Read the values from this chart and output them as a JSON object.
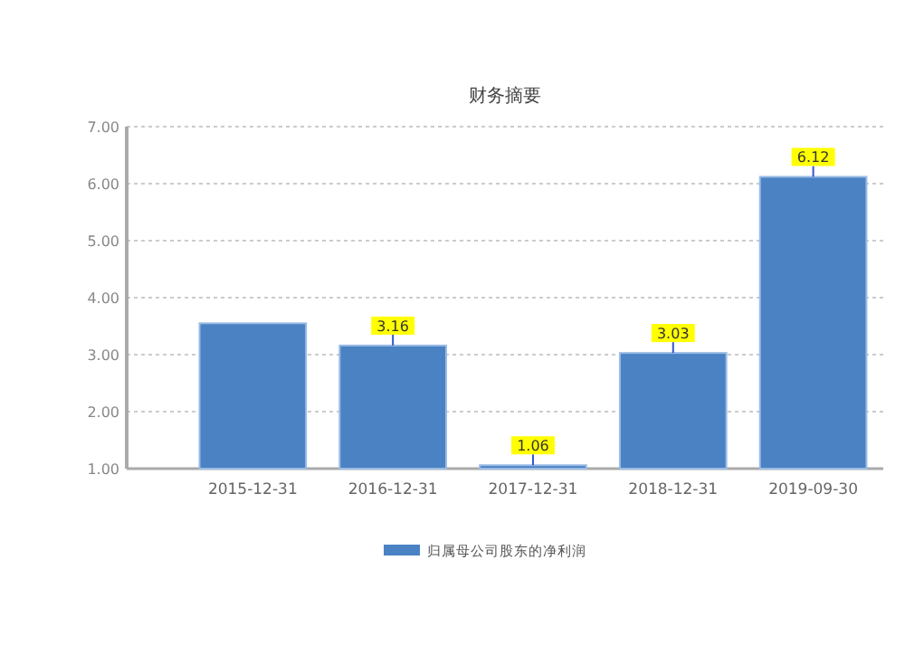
{
  "chart_data": {
    "type": "bar",
    "title": "财务摘要",
    "categories": [
      "2015-12-31",
      "2016-12-31",
      "2017-12-31",
      "2018-12-31",
      "2019-09-30"
    ],
    "series": [
      {
        "name": "归属母公司股东的净利润",
        "color": "#4a82c3",
        "values": [
          3.55,
          3.16,
          1.06,
          3.03,
          6.12
        ],
        "value_labels": [
          null,
          "3.16",
          "1.06",
          "3.03",
          "6.12"
        ]
      }
    ],
    "ylim": [
      1,
      7
    ],
    "yticks": [
      {
        "value": 1,
        "label": "1.00"
      },
      {
        "value": 2,
        "label": "2.00"
      },
      {
        "value": 3,
        "label": "3.00"
      },
      {
        "value": 4,
        "label": "4.00"
      },
      {
        "value": 5,
        "label": "5.00"
      },
      {
        "value": 6,
        "label": "6.00"
      },
      {
        "value": 7,
        "label": "7.00"
      }
    ],
    "grid": "y",
    "legend": "bottom"
  }
}
